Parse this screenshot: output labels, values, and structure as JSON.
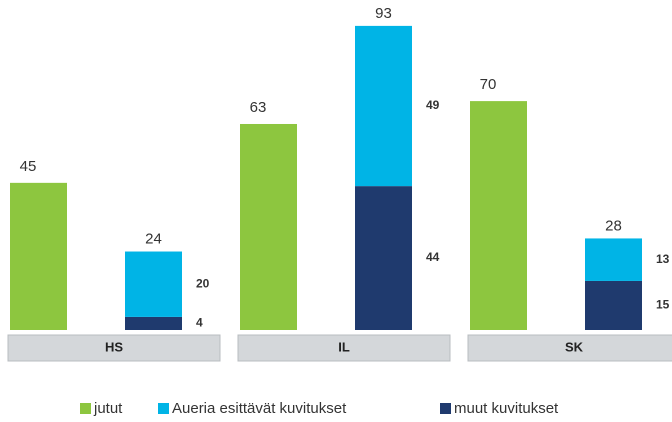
{
  "chart_data": {
    "type": "bar",
    "categories": [
      "HS",
      "IL",
      "SK"
    ],
    "series": [
      {
        "name": "jutut",
        "color": "#8dc63f",
        "values": [
          45,
          63,
          70
        ]
      },
      {
        "name": "Aueria esittävät kuvitukset",
        "color": "#00b4e6",
        "values": [
          20,
          49,
          13
        ]
      },
      {
        "name": "muut kuvitukset",
        "color": "#1f3a6e",
        "values": [
          4,
          44,
          15
        ]
      }
    ],
    "totals": [
      24,
      93,
      28
    ],
    "ylim": [
      0,
      100
    ]
  }
}
